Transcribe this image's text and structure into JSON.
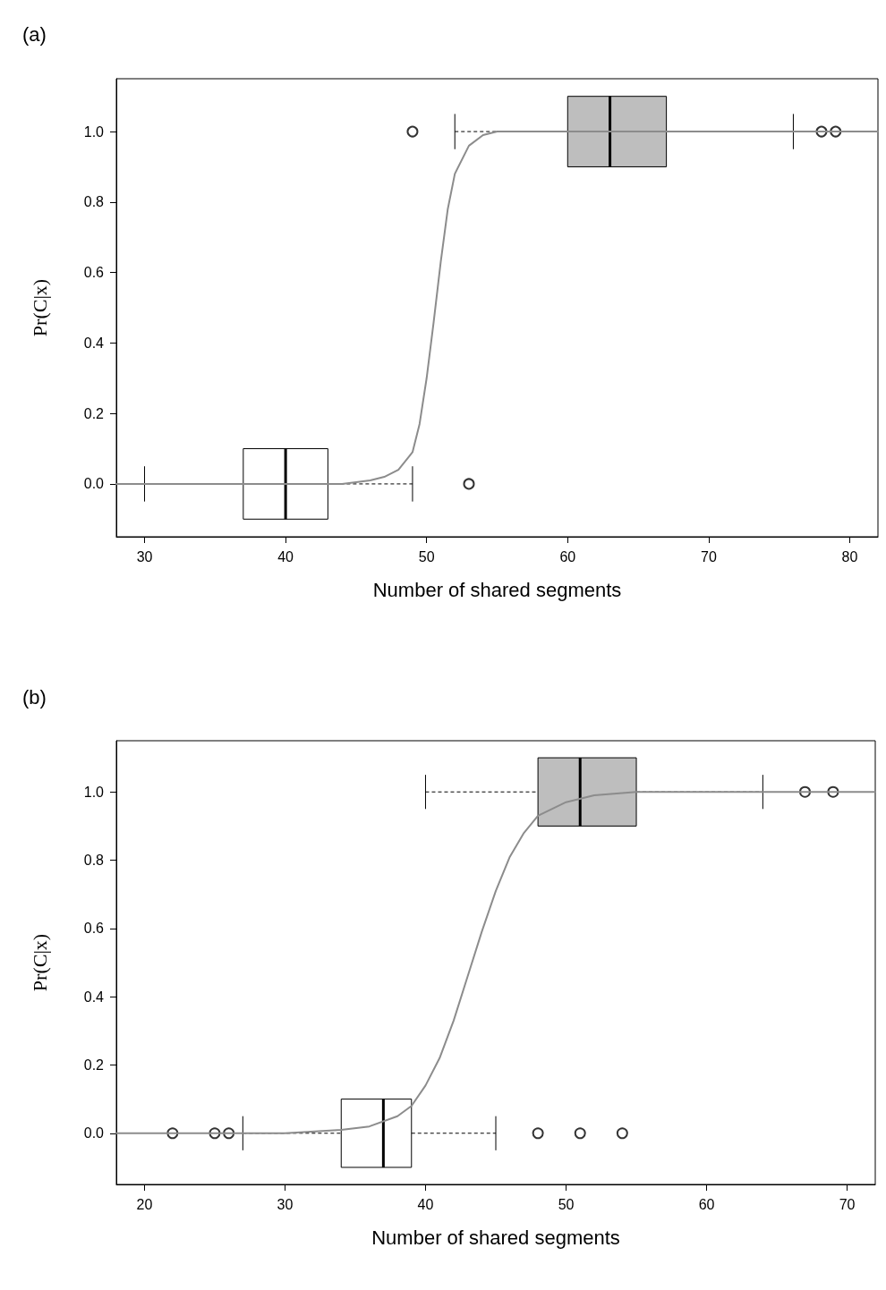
{
  "chart_data": [
    {
      "type": "box",
      "title": "(a)",
      "xlabel": "Number of shared segments",
      "ylabel": "Pr(C|x)",
      "xlim": [
        28,
        82
      ],
      "xticks": [
        30,
        40,
        50,
        60,
        70,
        80
      ],
      "ylim": [
        -0.15,
        1.15
      ],
      "yticks": [
        {
          "value": 0,
          "label": "0.0"
        },
        {
          "value": 0.2,
          "label": "0.2"
        },
        {
          "value": 0.4,
          "label": "0.4"
        },
        {
          "value": 0.6,
          "label": "0.6"
        },
        {
          "value": 0.8,
          "label": "0.8"
        },
        {
          "value": 1,
          "label": "1.0"
        }
      ],
      "grid": false,
      "orientation": "horizontal",
      "series": [
        {
          "type": "box",
          "x": [
            0,
            1
          ],
          "colors": [
            "#ffffff",
            "#bebebe"
          ],
          "line_style": "dashed",
          "marker": "circle",
          "boxes": [
            {
              "low": 30,
              "q1": 37,
              "median": 40,
              "q3": 43,
              "high": 49,
              "outliers": [
                53
              ]
            },
            {
              "low": 52,
              "q1": 60,
              "median": 63,
              "q3": 67,
              "high": 76,
              "outliers": [
                49,
                78,
                79
              ]
            }
          ]
        },
        {
          "type": "line",
          "color": "#8c8c8c",
          "marker": "none",
          "line_style": "solid",
          "values": [
            28,
            40,
            44,
            46,
            47,
            48,
            49,
            49.5,
            50,
            50.5,
            51,
            51.5,
            52,
            53,
            54,
            55,
            56,
            58,
            60,
            70,
            82
          ],
          "x": [
            0,
            0,
            0,
            0.01,
            0.02,
            0.04,
            0.09,
            0.17,
            0.3,
            0.46,
            0.63,
            0.78,
            0.88,
            0.96,
            0.99,
            1,
            1,
            1,
            1,
            1,
            1
          ]
        }
      ]
    },
    {
      "type": "box",
      "title": "(b)",
      "xlabel": "Number of shared segments",
      "ylabel": "Pr(C|x)",
      "xlim": [
        18,
        72
      ],
      "xticks": [
        20,
        30,
        40,
        50,
        60,
        70
      ],
      "ylim": [
        -0.15,
        1.15
      ],
      "yticks": [
        {
          "value": 0,
          "label": "0.0"
        },
        {
          "value": 0.2,
          "label": "0.2"
        },
        {
          "value": 0.4,
          "label": "0.4"
        },
        {
          "value": 0.6,
          "label": "0.6"
        },
        {
          "value": 0.8,
          "label": "0.8"
        },
        {
          "value": 1,
          "label": "1.0"
        }
      ],
      "grid": false,
      "orientation": "horizontal",
      "series": [
        {
          "type": "box",
          "x": [
            0,
            1
          ],
          "colors": [
            "#ffffff",
            "#bebebe"
          ],
          "line_style": "dashed",
          "marker": "circle",
          "boxes": [
            {
              "low": 27,
              "q1": 34,
              "median": 37,
              "q3": 39,
              "high": 45,
              "outliers": [
                22,
                25,
                26,
                48,
                51,
                54
              ]
            },
            {
              "low": 40,
              "q1": 48,
              "median": 51,
              "q3": 55,
              "high": 64,
              "outliers": [
                67,
                69
              ]
            }
          ]
        },
        {
          "type": "line",
          "color": "#8c8c8c",
          "marker": "none",
          "line_style": "solid",
          "values": [
            18,
            30,
            34,
            36,
            38,
            39,
            40,
            41,
            42,
            43,
            44,
            45,
            46,
            47,
            48,
            50,
            52,
            55,
            60,
            72
          ],
          "x": [
            0,
            0,
            0.01,
            0.02,
            0.05,
            0.08,
            0.14,
            0.22,
            0.33,
            0.46,
            0.59,
            0.71,
            0.81,
            0.88,
            0.93,
            0.97,
            0.99,
            1,
            1,
            1
          ]
        }
      ]
    }
  ]
}
